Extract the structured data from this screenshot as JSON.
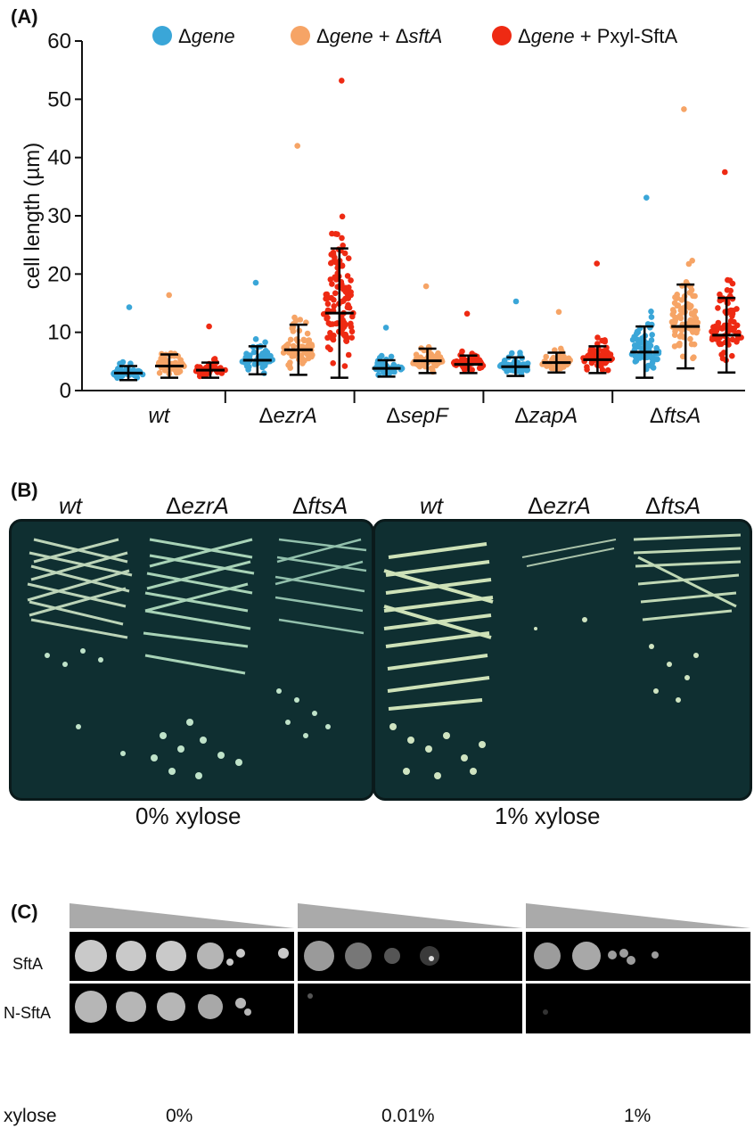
{
  "panels": {
    "a": "(A)",
    "b": "(B)",
    "c": "(C)"
  },
  "chart_data": {
    "type": "scatter",
    "title": "",
    "ylabel": "cell length (µm)",
    "ylim": [
      0,
      60
    ],
    "yticks": [
      0,
      10,
      20,
      30,
      40,
      50,
      60
    ],
    "legend_position": "top",
    "series": [
      {
        "name_prefix": "Δ",
        "name_italic": "gene",
        "name_suffix": "",
        "color": "#3aa6d8"
      },
      {
        "name_prefix": "Δ",
        "name_italic": "gene",
        "name_suffix": " + Δ",
        "name_italic2": "sftA",
        "color": "#f6a466"
      },
      {
        "name_prefix": "Δ",
        "name_italic": "gene",
        "name_suffix": " + Pxyl-SftA",
        "color": "#ee2a13"
      }
    ],
    "groups": [
      {
        "label_prefix": "",
        "label_italic": "wt",
        "mean": [
          3.0,
          4.2,
          3.5
        ],
        "sd": [
          1.2,
          2.0,
          1.3
        ],
        "max": [
          14.3,
          16.4,
          11.0
        ]
      },
      {
        "label_prefix": "Δ",
        "label_italic": "ezrA",
        "mean": [
          5.2,
          7.0,
          13.3
        ],
        "sd": [
          2.4,
          4.3,
          11.1
        ],
        "max": [
          18.5,
          42.0,
          53.2
        ]
      },
      {
        "label_prefix": "Δ",
        "label_italic": "sepF",
        "mean": [
          3.8,
          5.1,
          4.5
        ],
        "sd": [
          1.4,
          2.1,
          1.5
        ],
        "max": [
          10.8,
          17.9,
          13.2
        ]
      },
      {
        "label_prefix": "Δ",
        "label_italic": "zapA",
        "mean": [
          4.1,
          4.8,
          5.3
        ],
        "sd": [
          1.6,
          1.7,
          2.3
        ],
        "max": [
          15.3,
          13.5,
          21.8
        ]
      },
      {
        "label_prefix": "Δ",
        "label_italic": "ftsA",
        "mean": [
          6.6,
          11.0,
          9.5
        ],
        "sd": [
          4.4,
          7.2,
          6.4
        ],
        "max": [
          33.1,
          48.3,
          37.5
        ]
      }
    ]
  },
  "plates": {
    "left": {
      "cols": [
        {
          "prefix": "",
          "italic": "wt"
        },
        {
          "prefix": "Δ",
          "italic": "ezrA"
        },
        {
          "prefix": "Δ",
          "italic": "ftsA"
        }
      ],
      "caption": "0% xylose"
    },
    "right": {
      "cols": [
        {
          "prefix": "",
          "italic": "wt"
        },
        {
          "prefix": "Δ",
          "italic": "ezrA"
        },
        {
          "prefix": "Δ",
          "italic": "ftsA"
        }
      ],
      "caption": "1% xylose"
    }
  },
  "spot_assay": {
    "rows": [
      "SftA",
      "N-SftA"
    ],
    "row_label_title": "xylose",
    "conditions": [
      "0%",
      "0.01%",
      "1%"
    ]
  }
}
